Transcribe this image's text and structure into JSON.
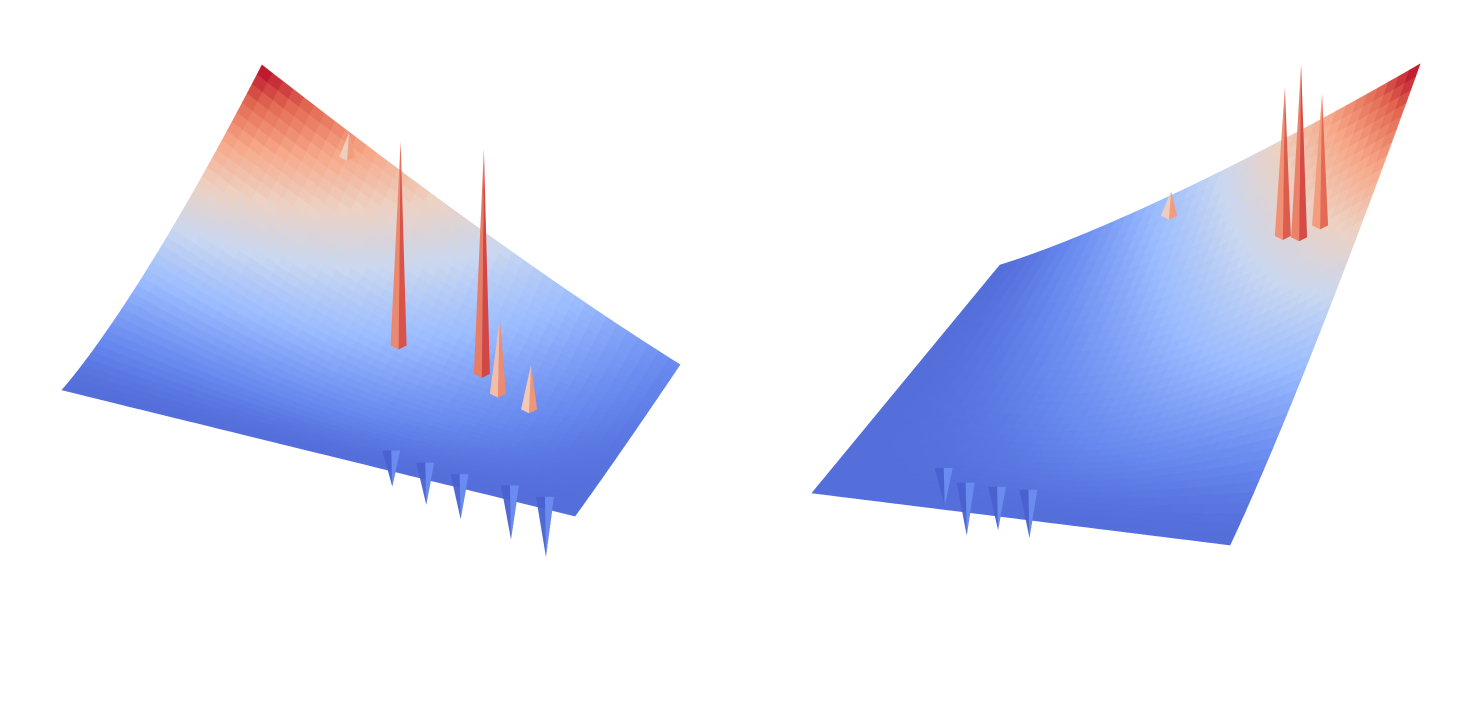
{
  "chart_data": [
    {
      "type": "surface",
      "colormap": [
        "#3b4cc0",
        "#6788ee",
        "#9abbff",
        "#c9d7f0",
        "#edd1c2",
        "#f7a889",
        "#e36a53",
        "#b40426"
      ],
      "axes_visible": false,
      "grid": false,
      "legend": "none",
      "spikes_up": [
        {
          "u": 0.48,
          "v": 0.4,
          "z": 0.68
        },
        {
          "u": 0.65,
          "v": 0.38,
          "z": 0.75
        },
        {
          "u": 0.69,
          "v": 0.43,
          "z": 0.25
        },
        {
          "u": 0.77,
          "v": 0.45,
          "z": 0.15
        },
        {
          "u": 0.22,
          "v": 0.05,
          "z": 0.08
        }
      ],
      "spikes_down": [
        {
          "u": 0.6,
          "v": 0.86,
          "z": 0.12
        },
        {
          "u": 0.68,
          "v": 0.88,
          "z": 0.14
        },
        {
          "u": 0.76,
          "v": 0.9,
          "z": 0.15
        },
        {
          "u": 0.85,
          "v": 0.91,
          "z": 0.18
        },
        {
          "u": 0.92,
          "v": 0.93,
          "z": 0.2
        }
      ]
    },
    {
      "type": "surface",
      "colormap": [
        "#3b4cc0",
        "#6788ee",
        "#9abbff",
        "#c9d7f0",
        "#edd1c2",
        "#f7a889",
        "#e36a53",
        "#b40426"
      ],
      "axes_visible": false,
      "grid": false,
      "legend": "none",
      "spikes_up": [
        {
          "u": 0.78,
          "v": 0.22,
          "z": 0.62
        },
        {
          "u": 0.83,
          "v": 0.24,
          "z": 0.72
        },
        {
          "u": 0.88,
          "v": 0.26,
          "z": 0.55
        },
        {
          "u": 0.42,
          "v": 0.04,
          "z": 0.1
        }
      ],
      "spikes_down": [
        {
          "u": 0.22,
          "v": 0.8,
          "z": 0.16
        },
        {
          "u": 0.3,
          "v": 0.84,
          "z": 0.22
        },
        {
          "u": 0.38,
          "v": 0.86,
          "z": 0.18
        },
        {
          "u": 0.46,
          "v": 0.85,
          "z": 0.2
        }
      ]
    }
  ]
}
